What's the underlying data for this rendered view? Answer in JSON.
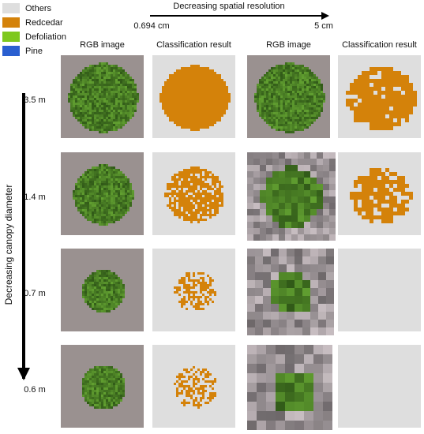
{
  "legend": [
    {
      "label": "Others",
      "color": "#dedede"
    },
    {
      "label": "Redcedar",
      "color": "#d4820a"
    },
    {
      "label": "Defoliation",
      "color": "#7ec81e"
    },
    {
      "label": "Pine",
      "color": "#2a5fd0"
    }
  ],
  "top_axis": {
    "title": "Decreasing spatial resolution",
    "start": "0.694 cm",
    "end": "5 cm"
  },
  "side_axis": {
    "title": "Decreasing canopy diameter"
  },
  "columns": [
    "RGB image",
    "Classification result",
    "RGB image",
    "Classification result"
  ],
  "rows": [
    "3.5 m",
    "1.4 m",
    "0.7 m",
    "0.6 m"
  ]
}
